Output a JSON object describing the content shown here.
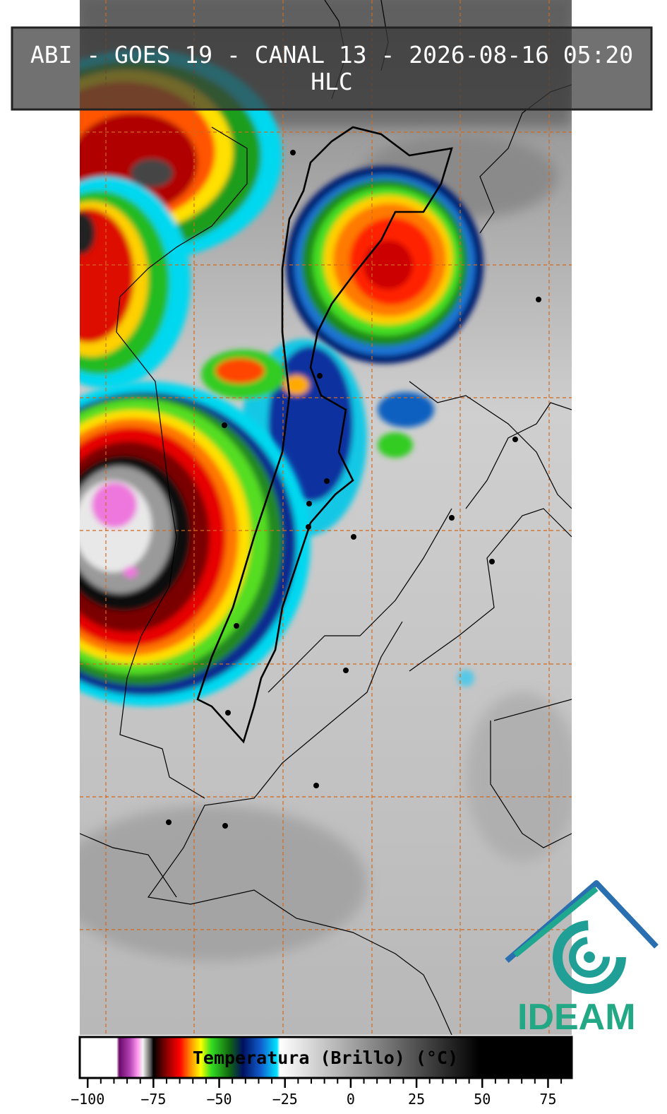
{
  "title_lines": [
    "ABI - GOES 19 - CANAL 13 - 2026-08-16 05:20",
    "HLC"
  ],
  "colorbar": {
    "label": "Temperatura (Brillo) (°C)",
    "lim": [
      -103,
      84
    ],
    "ticks": [
      {
        "value": -100,
        "label": "−100"
      },
      {
        "value": -75,
        "label": "−75"
      },
      {
        "value": -50,
        "label": "−50"
      },
      {
        "value": -25,
        "label": "−25"
      },
      0,
      25,
      50,
      75
    ],
    "colormap": [
      {
        "value": -103,
        "color": "#ffffff"
      },
      {
        "value": -89,
        "color": "#ffffff"
      },
      {
        "value": -88,
        "color": "#6a0a6a"
      },
      {
        "value": -84,
        "color": "#b040b0"
      },
      {
        "value": -81,
        "color": "#ff99ee"
      },
      {
        "value": -79,
        "color": "#f4f4f4"
      },
      {
        "value": -76,
        "color": "#555555"
      },
      {
        "value": -75,
        "color": "#000000"
      },
      {
        "value": -70,
        "color": "#8b0000"
      },
      {
        "value": -65,
        "color": "#ff0000"
      },
      {
        "value": -61,
        "color": "#ff8c00"
      },
      {
        "value": -57,
        "color": "#ffff00"
      },
      {
        "value": -53,
        "color": "#33dd22"
      },
      {
        "value": -46,
        "color": "#116611"
      },
      {
        "value": -41,
        "color": "#001060"
      },
      {
        "value": -34,
        "color": "#1060d0"
      },
      {
        "value": -28,
        "color": "#00e5ff"
      },
      {
        "value": -27,
        "color": "#ffffff"
      },
      {
        "value": 49,
        "color": "#000000"
      },
      {
        "value": 84,
        "color": "#000000"
      }
    ]
  },
  "logo": "IDEAM"
}
